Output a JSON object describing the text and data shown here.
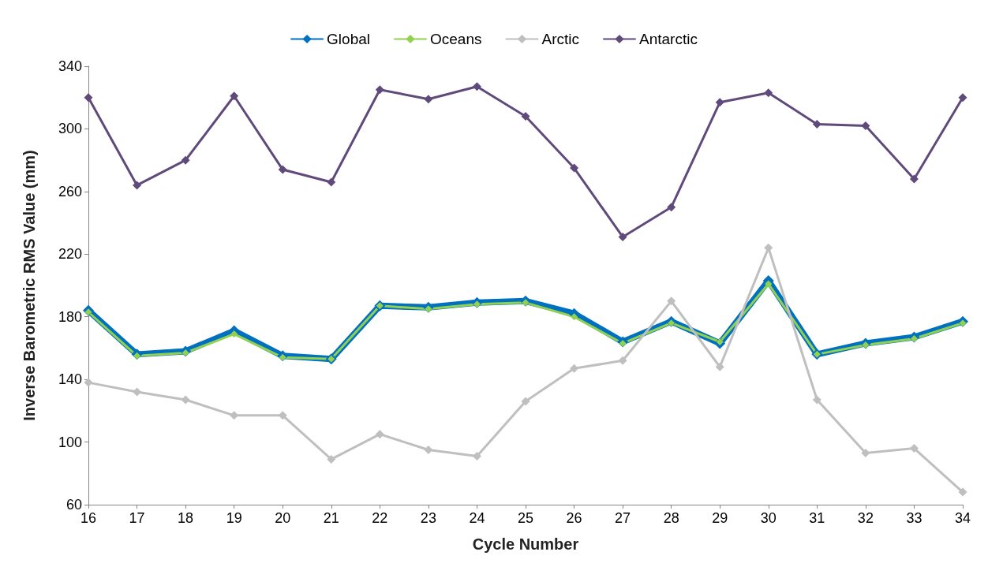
{
  "chart_data": {
    "type": "line",
    "xlabel": "Cycle Number",
    "ylabel": "Inverse Barometric RMS Value (mm)",
    "categories": [
      "16",
      "17",
      "18",
      "19",
      "20",
      "21",
      "22",
      "23",
      "24",
      "25",
      "26",
      "27",
      "28",
      "29",
      "30",
      "31",
      "32",
      "33",
      "34"
    ],
    "series": [
      {
        "name": "Global",
        "color": "#0070c0",
        "values": [
          184,
          156,
          158,
          171,
          155,
          153,
          187,
          186,
          189,
          190,
          182,
          164,
          177,
          163,
          203,
          156,
          163,
          167,
          177
        ]
      },
      {
        "name": "Oceans",
        "color": "#92d050",
        "values": [
          183,
          155,
          157,
          169,
          154,
          153,
          187,
          185,
          188,
          189,
          180,
          163,
          176,
          164,
          201,
          156,
          162,
          166,
          176
        ]
      },
      {
        "name": "Arctic",
        "color": "#bfbfbf",
        "values": [
          138,
          132,
          127,
          117,
          117,
          89,
          105,
          95,
          91,
          126,
          147,
          152,
          190,
          148,
          224,
          127,
          93,
          96,
          68
        ]
      },
      {
        "name": "Antarctic",
        "color": "#604a7b",
        "values": [
          320,
          264,
          280,
          321,
          274,
          266,
          325,
          319,
          327,
          308,
          275,
          231,
          250,
          317,
          323,
          303,
          302,
          268,
          320
        ]
      }
    ],
    "ylim": [
      60,
      340
    ],
    "yticks": [
      60,
      100,
      140,
      180,
      220,
      260,
      300,
      340
    ],
    "grid": false,
    "legend": "top",
    "marker": "diamond",
    "line_style": "solid"
  }
}
